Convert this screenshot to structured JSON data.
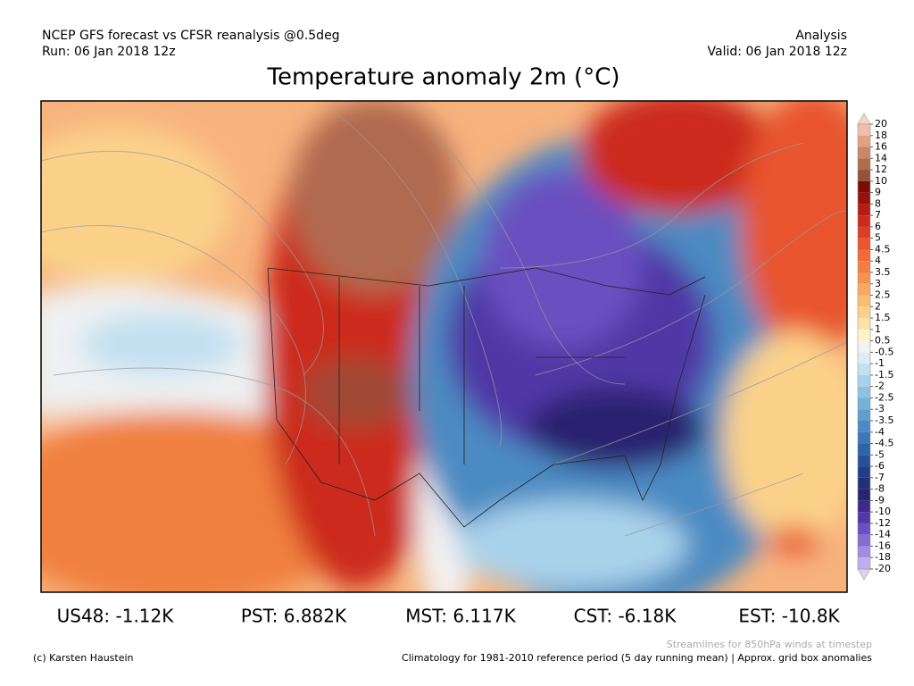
{
  "header": {
    "model": "NCEP GFS forecast vs CFSR reanalysis @0.5deg",
    "run": "Run: 06 Jan 2018 12z",
    "kind": "Analysis",
    "valid": "Valid: 06 Jan 2018 12z"
  },
  "title": "Temperature anomaly 2m (°C)",
  "colorbar": {
    "labels": [
      20,
      18,
      16,
      14,
      12,
      10,
      9,
      8,
      7,
      6,
      5,
      4.5,
      4,
      3.5,
      3,
      2.5,
      2,
      1.5,
      1,
      0.5,
      -0.5,
      -1,
      -1.5,
      -2,
      -2.5,
      -3,
      -3.5,
      -4,
      -4.5,
      -5,
      -6,
      -7,
      -8,
      -9,
      -10,
      -12,
      -14,
      -16,
      -18,
      -20
    ],
    "colors": [
      "#f6d5c5",
      "#efbfa8",
      "#dea286",
      "#c98668",
      "#b06b4f",
      "#955139",
      "#7a0c06",
      "#990f0f",
      "#b51b14",
      "#cc2a1c",
      "#dc3d26",
      "#e8552e",
      "#ee6a38",
      "#f27e44",
      "#f59252",
      "#f7a862",
      "#f9bd74",
      "#fbd18a",
      "#fde3a4",
      "#fef3c8",
      "#f2f2f2",
      "#dcecf6",
      "#c3e0f0",
      "#a9d2ea",
      "#8fc2e2",
      "#76b1d8",
      "#5f9ecd",
      "#4b8bc2",
      "#3b78b6",
      "#2f64a8",
      "#26509a",
      "#223e8a",
      "#22307a",
      "#2a2370",
      "#3b2a8a",
      "#5038a6",
      "#6a50c0",
      "#866cd2",
      "#a38ce0",
      "#c0aeec",
      "#dcd2f6"
    ]
  },
  "stats": [
    "US48: -1.12K",
    "PST: 6.882K",
    "MST: 6.117K",
    "CST: -6.18K",
    "EST: -10.8K"
  ],
  "footer": {
    "streamlines": "Streamlines for 850hPa winds at timestep",
    "credit": "(c) Karsten Haustein",
    "climatology": "Climatology for 1981-2010 reference period (5 day running mean) | Approx. grid box anomalies"
  }
}
